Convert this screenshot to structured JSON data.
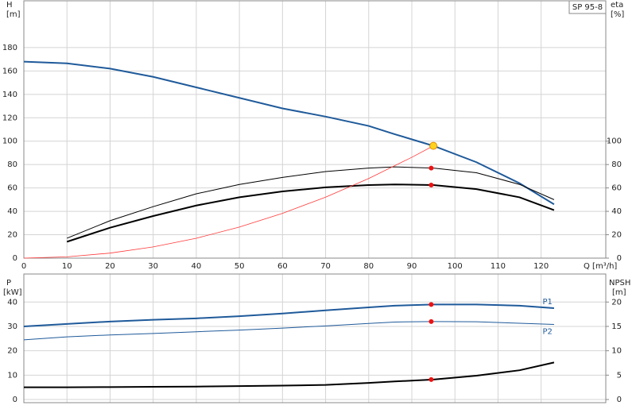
{
  "chart_data": [
    {
      "type": "line",
      "annotation": "SP 95-8",
      "y_label": "H",
      "y_unit": "[m]",
      "y2_label": "eta",
      "y2_unit": "[%]",
      "x_label": "Q [m³/h]",
      "xlim": [
        0,
        135
      ],
      "xticks": [
        0,
        10,
        20,
        30,
        40,
        50,
        60,
        70,
        80,
        90,
        100,
        110,
        120
      ],
      "ylim": [
        0,
        220
      ],
      "yticks": [
        0,
        20,
        40,
        60,
        80,
        100,
        120,
        140,
        160,
        180
      ],
      "y2lim": [
        0,
        220
      ],
      "y2ticks": [
        0,
        20,
        40,
        60,
        80,
        100
      ],
      "grid": true,
      "series": [
        {
          "color": "#1f5a9a",
          "line_width": 2,
          "x": [
            0,
            10,
            20,
            30,
            40,
            50,
            60,
            70,
            80,
            86,
            95,
            105,
            115,
            123
          ],
          "values": [
            168,
            166.5,
            162,
            155,
            146,
            137,
            128,
            121,
            113,
            106,
            96,
            82,
            64,
            46
          ]
        },
        {
          "color": "#000000",
          "line_width": 1,
          "axis": "y2",
          "x": [
            10,
            20,
            30,
            40,
            50,
            60,
            70,
            80,
            86,
            95,
            105,
            115,
            123
          ],
          "values": [
            17,
            32,
            44,
            55,
            63,
            69,
            74,
            77,
            78,
            77,
            73,
            63,
            50
          ]
        },
        {
          "color": "#000000",
          "line_width": 2,
          "axis": "y2",
          "x": [
            10,
            20,
            30,
            40,
            50,
            60,
            70,
            80,
            86,
            95,
            105,
            115,
            123
          ],
          "values": [
            14,
            26,
            36,
            45,
            52,
            57,
            60.5,
            62.5,
            63,
            62.5,
            59,
            52,
            41
          ]
        },
        {
          "color": "#ff3a3a",
          "line_width": 0.8,
          "x": [
            0,
            10,
            20,
            30,
            40,
            50,
            60,
            70,
            80,
            90,
            95
          ],
          "values": [
            0,
            1.1,
            4.3,
            9.6,
            17,
            26.6,
            38.3,
            52.1,
            68.1,
            86.2,
            96
          ]
        }
      ],
      "markers": [
        {
          "x": 94.5,
          "y": 77,
          "color": "#ee1111"
        },
        {
          "x": 94.5,
          "y": 62.5,
          "color": "#ee1111"
        },
        {
          "x": 95,
          "y": 96,
          "color": "#ffd21f"
        }
      ]
    },
    {
      "type": "line",
      "y_label": "P",
      "y_unit": "[kW]",
      "y2_label": "NPSH",
      "y2_unit": "[m]",
      "xlim": [
        0,
        135
      ],
      "ylim": [
        -1.3,
        51.5
      ],
      "yticks": [
        0,
        10,
        20,
        30,
        40
      ],
      "y2lim": [
        -0.65,
        25.75
      ],
      "y2ticks": [
        0,
        5,
        10,
        15,
        20
      ],
      "grid": true,
      "series": [
        {
          "name": "P1",
          "color": "#1f5a9a",
          "line_width": 2,
          "x": [
            0,
            10,
            20,
            30,
            40,
            50,
            60,
            70,
            80,
            86,
            95,
            105,
            115,
            123
          ],
          "values": [
            30,
            31,
            32,
            32.7,
            33.3,
            34.2,
            35.3,
            36.6,
            37.8,
            38.5,
            39,
            39,
            38.5,
            37.5
          ]
        },
        {
          "name": "P2",
          "color": "#1f5a9a",
          "line_width": 1,
          "x": [
            0,
            10,
            20,
            30,
            40,
            50,
            60,
            70,
            80,
            86,
            95,
            105,
            115,
            123
          ],
          "values": [
            24.5,
            25.7,
            26.5,
            27.1,
            27.8,
            28.5,
            29.3,
            30.2,
            31.2,
            31.8,
            32,
            31.9,
            31.3,
            30.8
          ]
        },
        {
          "color": "#000000",
          "line_width": 2,
          "axis": "y2",
          "x": [
            0,
            10,
            20,
            30,
            40,
            50,
            60,
            70,
            80,
            86,
            95,
            105,
            115,
            123
          ],
          "values": [
            2.5,
            2.5,
            2.55,
            2.6,
            2.65,
            2.75,
            2.85,
            3,
            3.4,
            3.7,
            4.1,
            4.9,
            6,
            7.6
          ]
        }
      ],
      "markers": [
        {
          "x": 94.5,
          "y": 39,
          "color": "#ee1111"
        },
        {
          "x": 94.5,
          "y": 32,
          "color": "#ee1111"
        },
        {
          "x": 94.5,
          "y": 4.1,
          "color": "#ee1111",
          "axis": "y2"
        }
      ]
    }
  ]
}
